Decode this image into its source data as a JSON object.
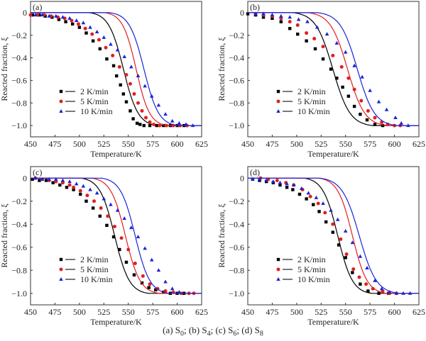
{
  "chart_data": [
    {
      "type": "line",
      "panel_label": "(a)",
      "xlabel": "Temperature/K",
      "ylabel": "Reacted fraction, ξ",
      "xlim": [
        450,
        625
      ],
      "ylim": [
        -1.1,
        0.1
      ],
      "xticks": [
        450,
        475,
        500,
        525,
        550,
        575,
        600,
        625
      ],
      "yticks": [
        0,
        -0.2,
        -0.4,
        -0.6,
        -0.8,
        -1.0
      ],
      "ytick_labels": [
        "0",
        "−0.2",
        "−0.4",
        "−0.6",
        "−0.8",
        "−1.0"
      ],
      "grid": false,
      "legend_position": "lower-left",
      "series": [
        {
          "name": "2 K/min",
          "color": "#000000",
          "marker": "square",
          "fit_center": 545,
          "fit_width": 12,
          "x": [
            452,
            459,
            465,
            472,
            479,
            486,
            493,
            500,
            507,
            514,
            521,
            528,
            535,
            538,
            542,
            545,
            548,
            552,
            555,
            559,
            562,
            566,
            572,
            579,
            586,
            593,
            600,
            607
          ],
          "y": [
            -0.02,
            -0.02,
            -0.03,
            -0.04,
            -0.06,
            -0.08,
            -0.1,
            -0.13,
            -0.18,
            -0.25,
            -0.32,
            -0.41,
            -0.47,
            -0.56,
            -0.64,
            -0.72,
            -0.79,
            -0.87,
            -0.94,
            -0.98,
            -0.99,
            -1.0,
            -1.0,
            -1.0,
            -1.0,
            -1.0,
            -1.0,
            -1.0
          ]
        },
        {
          "name": "5 K/min",
          "color": "#e0201e",
          "marker": "circle",
          "fit_center": 558,
          "fit_width": 11,
          "x": [
            450,
            457,
            464,
            471,
            478,
            485,
            492,
            499,
            506,
            513,
            520,
            527,
            534,
            541,
            548,
            552,
            556,
            560,
            564,
            568,
            572,
            576,
            582,
            589,
            596,
            603,
            610
          ],
          "y": [
            -0.02,
            -0.02,
            -0.02,
            -0.03,
            -0.04,
            -0.05,
            -0.07,
            -0.1,
            -0.14,
            -0.19,
            -0.24,
            -0.31,
            -0.38,
            -0.48,
            -0.55,
            -0.63,
            -0.72,
            -0.8,
            -0.87,
            -0.93,
            -0.97,
            -0.99,
            -1.0,
            -1.0,
            -1.0,
            -1.0,
            -1.0
          ]
        },
        {
          "name": "10 K/min",
          "color": "#1a24d6",
          "marker": "triangle",
          "fit_center": 566,
          "fit_width": 12,
          "x": [
            455,
            462,
            469,
            476,
            483,
            490,
            497,
            504,
            511,
            518,
            525,
            532,
            539,
            546,
            553,
            560,
            567,
            574,
            581,
            588,
            595,
            602,
            609,
            616
          ],
          "y": [
            -0.02,
            -0.02,
            -0.03,
            -0.03,
            -0.04,
            -0.05,
            -0.07,
            -0.09,
            -0.13,
            -0.17,
            -0.22,
            -0.28,
            -0.33,
            -0.39,
            -0.48,
            -0.56,
            -0.65,
            -0.74,
            -0.82,
            -0.9,
            -0.96,
            -0.98,
            -0.99,
            -1.0
          ]
        }
      ]
    },
    {
      "type": "line",
      "panel_label": "(b)",
      "xlabel": "Temperature/K",
      "ylabel": "Reacted fraction, ξ",
      "xlim": [
        450,
        625
      ],
      "ylim": [
        -1.1,
        0.1
      ],
      "xticks": [
        450,
        475,
        500,
        525,
        550,
        575,
        600,
        625
      ],
      "yticks": [
        0,
        -0.2,
        -0.4,
        -0.6,
        -0.8,
        -1.0
      ],
      "ytick_labels": [
        "0",
        "−0.2",
        "−0.4",
        "−0.6",
        "−0.8",
        "−1.0"
      ],
      "grid": false,
      "legend_position": "lower-left",
      "series": [
        {
          "name": "2 K/min",
          "color": "#000000",
          "marker": "square",
          "fit_center": 537,
          "fit_width": 14,
          "x": [
            450,
            458,
            466,
            475,
            484,
            493,
            501,
            510,
            519,
            527,
            535,
            541,
            547,
            553,
            559,
            565,
            572,
            580,
            588
          ],
          "y": [
            -0.01,
            -0.02,
            -0.04,
            -0.05,
            -0.08,
            -0.14,
            -0.19,
            -0.25,
            -0.32,
            -0.41,
            -0.5,
            -0.58,
            -0.66,
            -0.74,
            -0.83,
            -0.9,
            -0.95,
            -0.99,
            -1.0
          ]
        },
        {
          "name": "5 K/min",
          "color": "#e0201e",
          "marker": "circle",
          "fit_center": 552,
          "fit_width": 14,
          "x": [
            458,
            466,
            475,
            484,
            493,
            501,
            510,
            518,
            527,
            537,
            546,
            553,
            559,
            566,
            573,
            580,
            587,
            593,
            600,
            606
          ],
          "y": [
            -0.01,
            -0.02,
            -0.03,
            -0.05,
            -0.08,
            -0.11,
            -0.18,
            -0.23,
            -0.3,
            -0.38,
            -0.48,
            -0.58,
            -0.68,
            -0.78,
            -0.87,
            -0.93,
            -0.97,
            -0.99,
            -1.0,
            -1.0
          ]
        },
        {
          "name": "10 K/min",
          "color": "#1a24d6",
          "marker": "triangle",
          "fit_center": 562,
          "fit_width": 14,
          "x": [
            458,
            466,
            475,
            484,
            493,
            502,
            511,
            521,
            531,
            541,
            550,
            559,
            567,
            575,
            584,
            592,
            601,
            607,
            614
          ],
          "y": [
            -0.01,
            -0.01,
            -0.02,
            -0.03,
            -0.04,
            -0.06,
            -0.08,
            -0.13,
            -0.19,
            -0.27,
            -0.35,
            -0.47,
            -0.57,
            -0.69,
            -0.79,
            -0.86,
            -0.93,
            -0.98,
            -1.0
          ]
        }
      ]
    },
    {
      "type": "line",
      "panel_label": "(c)",
      "xlabel": "Temperature/K",
      "ylabel": "Reacted fraction, ξ",
      "xlim": [
        450,
        625
      ],
      "ylim": [
        -1.1,
        0.1
      ],
      "xticks": [
        450,
        475,
        500,
        525,
        550,
        575,
        600,
        625
      ],
      "yticks": [
        0,
        -0.2,
        -0.4,
        -0.6,
        -0.8,
        -1.0
      ],
      "ytick_labels": [
        "0",
        "−0.2",
        "−0.4",
        "−0.6",
        "−0.8",
        "−1.0"
      ],
      "grid": false,
      "legend_position": "lower-left",
      "series": [
        {
          "name": "2 K/min",
          "color": "#000000",
          "marker": "square",
          "fit_center": 536,
          "fit_width": 12,
          "x": [
            452,
            459,
            466,
            473,
            480,
            487,
            494,
            501,
            507,
            514,
            521,
            528,
            535,
            541,
            548,
            556,
            564,
            571,
            578,
            586,
            593,
            600,
            607
          ],
          "y": [
            -0.01,
            -0.02,
            -0.02,
            -0.04,
            -0.06,
            -0.08,
            -0.1,
            -0.14,
            -0.2,
            -0.26,
            -0.33,
            -0.41,
            -0.51,
            -0.62,
            -0.73,
            -0.84,
            -0.91,
            -0.95,
            -0.97,
            -0.99,
            -1.0,
            -1.0,
            -1.0
          ]
        },
        {
          "name": "5 K/min",
          "color": "#e0201e",
          "marker": "circle",
          "fit_center": 547,
          "fit_width": 12,
          "x": [
            455,
            462,
            469,
            476,
            483,
            490,
            494,
            501,
            508,
            515,
            522,
            529,
            536,
            543,
            550,
            557,
            565,
            572,
            580,
            588,
            596,
            604,
            612,
            617
          ],
          "y": [
            -0.0,
            -0.01,
            -0.02,
            -0.03,
            -0.04,
            -0.06,
            -0.08,
            -0.11,
            -0.15,
            -0.2,
            -0.26,
            -0.33,
            -0.42,
            -0.52,
            -0.62,
            -0.74,
            -0.85,
            -0.92,
            -0.96,
            -0.98,
            -0.99,
            -1.0,
            -1.0,
            -1.0
          ]
        },
        {
          "name": "10 K/min",
          "color": "#1a24d6",
          "marker": "triangle",
          "fit_center": 557,
          "fit_width": 12,
          "x": [
            455,
            462,
            469,
            476,
            483,
            490,
            497,
            504,
            511,
            518,
            525,
            532,
            539,
            546,
            553,
            560,
            567,
            574,
            581,
            588,
            595,
            602
          ],
          "y": [
            -0.0,
            -0.01,
            -0.01,
            -0.01,
            -0.02,
            -0.03,
            -0.05,
            -0.07,
            -0.1,
            -0.13,
            -0.18,
            -0.23,
            -0.28,
            -0.35,
            -0.43,
            -0.51,
            -0.61,
            -0.71,
            -0.8,
            -0.9,
            -0.96,
            -0.99
          ]
        }
      ]
    },
    {
      "type": "line",
      "panel_label": "(d)",
      "xlabel": "Temperature/K",
      "ylabel": "Reacted fraction, ξ",
      "xlim": [
        450,
        625
      ],
      "ylim": [
        -1.1,
        0.1
      ],
      "xticks": [
        450,
        475,
        500,
        525,
        550,
        575,
        600,
        625
      ],
      "yticks": [
        0,
        -0.2,
        -0.4,
        -0.6,
        -0.8,
        -1.0
      ],
      "ytick_labels": [
        "0",
        "−0.2",
        "−0.4",
        "−0.6",
        "−0.8",
        "−1.0"
      ],
      "grid": false,
      "legend_position": "lower-left",
      "series": [
        {
          "name": "2 K/min",
          "color": "#000000",
          "marker": "square",
          "fit_center": 542,
          "fit_width": 12,
          "x": [
            455,
            462,
            469,
            476,
            483,
            490,
            496,
            503,
            510,
            517,
            523,
            530,
            537,
            543,
            550,
            557,
            565,
            573,
            584,
            594
          ],
          "y": [
            -0.01,
            -0.02,
            -0.03,
            -0.04,
            -0.06,
            -0.08,
            -0.1,
            -0.14,
            -0.18,
            -0.23,
            -0.29,
            -0.38,
            -0.47,
            -0.58,
            -0.69,
            -0.82,
            -0.92,
            -0.98,
            -1.0,
            -1.0
          ]
        },
        {
          "name": "5 K/min",
          "color": "#e0201e",
          "marker": "circle",
          "fit_center": 557,
          "fit_width": 12,
          "x": [
            463,
            471,
            480,
            489,
            497,
            506,
            514,
            522,
            529,
            537,
            545,
            551,
            558,
            564,
            571,
            578,
            588,
            595,
            602
          ],
          "y": [
            0,
            -0.01,
            -0.02,
            -0.04,
            -0.06,
            -0.1,
            -0.16,
            -0.22,
            -0.3,
            -0.4,
            -0.53,
            -0.66,
            -0.79,
            -0.86,
            -0.92,
            -0.96,
            -0.98,
            -1.0,
            -1.0
          ]
        },
        {
          "name": "10 K/min",
          "color": "#1a24d6",
          "marker": "triangle",
          "fit_center": 564,
          "fit_width": 14,
          "x": [
            455,
            462,
            469,
            476,
            483,
            490,
            497,
            505,
            512,
            520,
            527,
            535,
            542,
            550,
            557,
            565,
            572,
            580,
            587,
            595,
            602,
            609,
            616
          ],
          "y": [
            -0.01,
            -0.01,
            -0.02,
            -0.03,
            -0.04,
            -0.05,
            -0.06,
            -0.09,
            -0.13,
            -0.17,
            -0.22,
            -0.28,
            -0.36,
            -0.46,
            -0.56,
            -0.68,
            -0.78,
            -0.89,
            -0.96,
            -0.99,
            -1.0,
            -1.0,
            -1.0
          ]
        }
      ]
    }
  ],
  "caption": {
    "parts": [
      {
        "text": "(a) S",
        "sub": "0",
        "after": "; "
      },
      {
        "text": "(b) S",
        "sub": "4",
        "after": ";  "
      },
      {
        "text": "(c) S",
        "sub": "6",
        "after": "; "
      },
      {
        "text": "(d) S",
        "sub": "8",
        "after": ""
      }
    ]
  }
}
